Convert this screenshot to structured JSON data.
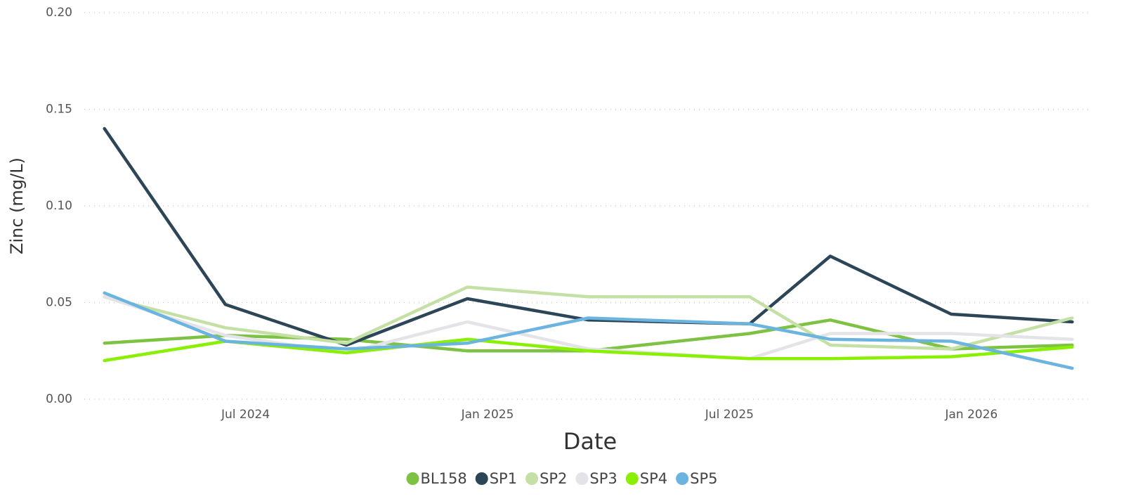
{
  "chart_data": {
    "type": "line",
    "x_label": "Date",
    "y_label": "Zinc (mg/L)",
    "x": [
      "2024-03",
      "2024-06",
      "2024-09",
      "2024-12",
      "2025-03",
      "2025-07",
      "2025-09",
      "2025-12",
      "2026-03"
    ],
    "xlim": [
      "2024-03",
      "2026-04"
    ],
    "xticks": [
      {
        "value": "2024-07",
        "label": "Jul 2024"
      },
      {
        "value": "2025-01",
        "label": "Jan 2025"
      },
      {
        "value": "2025-07",
        "label": "Jul 2025"
      },
      {
        "value": "2026-01",
        "label": "Jan 2026"
      }
    ],
    "ylim": [
      0,
      0.2
    ],
    "yticks": [
      {
        "value": 0,
        "label": "0.00"
      },
      {
        "value": 0.05,
        "label": "0.05"
      },
      {
        "value": 0.1,
        "label": "0.10"
      },
      {
        "value": 0.15,
        "label": "0.15"
      },
      {
        "value": 0.2,
        "label": "0.20"
      }
    ],
    "grid": true,
    "legend": "bottom",
    "series": [
      {
        "name": "BL158",
        "color": "#7dc242",
        "values": [
          0.029,
          0.033,
          0.031,
          0.025,
          0.025,
          0.034,
          0.041,
          0.026,
          0.028
        ]
      },
      {
        "name": "SP1",
        "color": "#2d4657",
        "values": [
          0.14,
          0.049,
          0.028,
          0.052,
          0.041,
          0.039,
          0.074,
          0.044,
          0.04
        ]
      },
      {
        "name": "SP2",
        "color": "#c5e0a5",
        "values": [
          0.053,
          0.037,
          0.029,
          0.058,
          0.053,
          0.053,
          0.028,
          0.026,
          0.042
        ]
      },
      {
        "name": "SP3",
        "color": "#e4e4e8",
        "values": [
          0.053,
          0.033,
          0.024,
          0.04,
          0.026,
          0.021,
          0.034,
          0.034,
          0.031
        ]
      },
      {
        "name": "SP4",
        "color": "#88f000",
        "values": [
          0.02,
          0.03,
          0.024,
          0.031,
          0.025,
          0.021,
          0.021,
          0.022,
          0.027
        ]
      },
      {
        "name": "SP5",
        "color": "#6cb4e0",
        "values": [
          0.055,
          0.03,
          0.026,
          0.029,
          0.042,
          0.039,
          0.031,
          0.03,
          0.016
        ]
      }
    ]
  }
}
